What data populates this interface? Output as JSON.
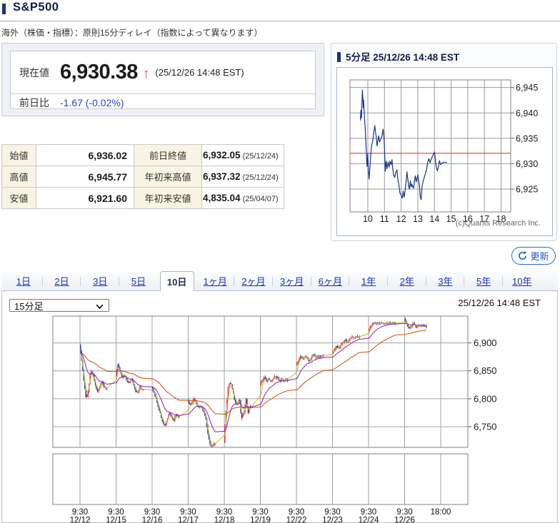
{
  "page": {
    "title": "S&P500",
    "subtitle": "海外（株価・指標）：原則15分ディレイ（指数によって異なります）"
  },
  "quote": {
    "current_label": "現在値",
    "current_value": "6,930.38",
    "arrow": "↑",
    "timestamp": "(25/12/26 14:48 EST)",
    "change_label": "前日比",
    "change_value": "-1.67 (-0.02%)"
  },
  "stats_table": {
    "rows": [
      {
        "label1": "始値",
        "value1": "6,936.02",
        "label2": "前日終値",
        "value2": "6,932.05",
        "date2": "(25/12/24)"
      },
      {
        "label1": "高値",
        "value1": "6,945.77",
        "label2": "年初来高値",
        "value2": "6,937.32",
        "date2": "(25/12/24)"
      },
      {
        "label1": "安値",
        "value1": "6,921.60",
        "label2": "年初来安値",
        "value2": "4,835.04",
        "date2": "(25/04/07)"
      }
    ]
  },
  "intraday_panel": {
    "title": "5分足 25/12/26 14:48 EST",
    "copyright": "(c)Quants Research Inc."
  },
  "refresh_button": {
    "label": "更新"
  },
  "tabs": {
    "selected": "10日",
    "items": [
      {
        "label": "1日",
        "selected": false
      },
      {
        "label": "2日",
        "selected": false
      },
      {
        "label": "3日",
        "selected": false
      },
      {
        "label": "5日",
        "selected": false
      },
      {
        "label": "10日",
        "selected": true
      },
      {
        "label": "1ヶ月",
        "selected": false
      },
      {
        "label": "2ヶ月",
        "selected": false
      },
      {
        "label": "3ヶ月",
        "selected": false
      },
      {
        "label": "6ヶ月",
        "selected": false
      },
      {
        "label": "1年",
        "selected": false
      },
      {
        "label": "2年",
        "selected": false
      },
      {
        "label": "3年",
        "selected": false
      },
      {
        "label": "5年",
        "selected": false
      },
      {
        "label": "10年",
        "selected": false
      }
    ]
  },
  "chart_controls": {
    "interval_select": "15分足",
    "datetime": "25/12/26 14:48 EST"
  },
  "colors": {
    "accent_navy": "#101c4e",
    "link_blue": "#1a35b0",
    "up_red": "#e0263e",
    "down_blue": "#2035a8",
    "ma_short": "#b9c21f",
    "ma_mid": "#9b1fb4",
    "ma_long": "#d2500f",
    "prev_close_red": "#e23b3b",
    "intraday_line": "#16368c",
    "arrow_pink": "#e8365f",
    "change_blue": "#2743c8"
  },
  "chart_data": [
    {
      "type": "line",
      "title": "5分足 intraday",
      "x_unit": "hour",
      "x_ticks": [
        10,
        11,
        12,
        13,
        14,
        15,
        16,
        17,
        18
      ],
      "x_range": [
        8.93,
        18.58
      ],
      "y_ticks": [
        6925,
        6930,
        6935,
        6940,
        6945
      ],
      "y_tick_labels": [
        "6,925",
        "6,930",
        "6,935",
        "6,940",
        "6,945"
      ],
      "y_range": [
        6920.5,
        6946.5
      ],
      "prev_close": 6932.05,
      "points": [
        [
          9.55,
          6938.5
        ],
        [
          9.58,
          6940.5
        ],
        [
          9.62,
          6939
        ],
        [
          9.67,
          6944.5
        ],
        [
          9.7,
          6943
        ],
        [
          9.73,
          6941
        ],
        [
          9.75,
          6942.5
        ],
        [
          9.8,
          6939
        ],
        [
          9.85,
          6936.5
        ],
        [
          9.9,
          6933
        ],
        [
          9.95,
          6929.5
        ],
        [
          10,
          6932
        ],
        [
          10.03,
          6929
        ],
        [
          10.08,
          6927
        ],
        [
          10.12,
          6929
        ],
        [
          10.17,
          6931.5
        ],
        [
          10.22,
          6933.5
        ],
        [
          10.3,
          6934.5
        ],
        [
          10.35,
          6936
        ],
        [
          10.42,
          6937.5
        ],
        [
          10.47,
          6936
        ],
        [
          10.5,
          6935.5
        ],
        [
          10.55,
          6933.5
        ],
        [
          10.6,
          6934.5
        ],
        [
          10.65,
          6935.5
        ],
        [
          10.7,
          6934.3
        ],
        [
          10.78,
          6934.8
        ],
        [
          10.85,
          6935.5
        ],
        [
          10.92,
          6936.8
        ],
        [
          10.97,
          6935
        ],
        [
          11,
          6933
        ],
        [
          11.05,
          6928.5
        ],
        [
          11.1,
          6930.5
        ],
        [
          11.15,
          6929
        ],
        [
          11.22,
          6930.3
        ],
        [
          11.28,
          6929.3
        ],
        [
          11.33,
          6930.5
        ],
        [
          11.4,
          6929.8
        ],
        [
          11.45,
          6930.8
        ],
        [
          11.5,
          6929
        ],
        [
          11.55,
          6927.8
        ],
        [
          11.62,
          6927.3
        ],
        [
          11.68,
          6928.3
        ],
        [
          11.75,
          6928.8
        ],
        [
          11.8,
          6927
        ],
        [
          11.87,
          6925.8
        ],
        [
          11.93,
          6924.2
        ],
        [
          12,
          6923.8
        ],
        [
          12.07,
          6923.2
        ],
        [
          12.12,
          6924.6
        ],
        [
          12.18,
          6923.4
        ],
        [
          12.25,
          6925
        ],
        [
          12.3,
          6926.6
        ],
        [
          12.35,
          6928.4
        ],
        [
          12.4,
          6927
        ],
        [
          12.45,
          6925.6
        ],
        [
          12.5,
          6925
        ],
        [
          12.55,
          6926.6
        ],
        [
          12.6,
          6925.4
        ],
        [
          12.65,
          6926
        ],
        [
          12.7,
          6925.4
        ],
        [
          12.75,
          6925.2
        ],
        [
          12.8,
          6926.6
        ],
        [
          12.85,
          6927.6
        ],
        [
          12.9,
          6926.4
        ],
        [
          12.95,
          6927
        ],
        [
          13,
          6927.8
        ],
        [
          13.05,
          6926.6
        ],
        [
          13.1,
          6925.8
        ],
        [
          13.15,
          6923.4
        ],
        [
          13.2,
          6922.9
        ],
        [
          13.25,
          6925.4
        ],
        [
          13.32,
          6926.6
        ],
        [
          13.4,
          6927.4
        ],
        [
          13.47,
          6928.2
        ],
        [
          13.53,
          6929
        ],
        [
          13.6,
          6930.4
        ],
        [
          13.67,
          6931
        ],
        [
          13.73,
          6930.2
        ],
        [
          13.8,
          6930.8
        ],
        [
          13.87,
          6931.4
        ],
        [
          13.93,
          6931.8
        ],
        [
          14,
          6932.3
        ],
        [
          14.05,
          6931
        ],
        [
          14.1,
          6929.6
        ],
        [
          14.17,
          6928.6
        ],
        [
          14.23,
          6929.2
        ],
        [
          14.3,
          6930.6
        ],
        [
          14.37,
          6929.8
        ],
        [
          14.43,
          6930
        ],
        [
          14.5,
          6930.2
        ],
        [
          14.6,
          6930.3
        ],
        [
          14.75,
          6930.2
        ]
      ]
    },
    {
      "type": "candlestick",
      "interval": "15分足",
      "period": "10日",
      "y_ticks": [
        6900,
        6850,
        6800,
        6750
      ],
      "y_tick_labels": [
        "6,900",
        "6,850",
        "6,800",
        "6,750"
      ],
      "y_range": [
        6713,
        6948
      ],
      "x_axis_last_label": "18:00",
      "moving_averages": [
        "short",
        "mid",
        "long"
      ],
      "days": [
        {
          "date": "12/12",
          "time": "9:30",
          "path": [
            6897,
            6868,
            6828,
            6800,
            6815,
            6850,
            6845,
            6828,
            6812,
            6820,
            6832,
            6822,
            6818
          ]
        },
        {
          "date": "12/15",
          "time": "9:30",
          "path": [
            6840,
            6863,
            6848,
            6838,
            6843,
            6833,
            6827,
            6836,
            6828,
            6814,
            6810,
            6822,
            6817
          ]
        },
        {
          "date": "12/16",
          "time": "9:30",
          "path": [
            6820,
            6812,
            6800,
            6786,
            6772,
            6757,
            6752,
            6764,
            6776,
            6768,
            6762,
            6772,
            6768
          ]
        },
        {
          "date": "12/17",
          "time": "9:30",
          "path": [
            6799,
            6789,
            6794,
            6801,
            6791,
            6783,
            6787,
            6779,
            6768,
            6742,
            6718,
            6714,
            6720
          ]
        },
        {
          "date": "12/18",
          "time": "9:30",
          "path": [
            6722,
            6782,
            6824,
            6829,
            6817,
            6794,
            6788,
            6802,
            6764,
            6774,
            6800,
            6776,
            6786
          ]
        },
        {
          "date": "12/19",
          "time": "9:30",
          "path": [
            6825,
            6833,
            6839,
            6830,
            6837,
            6829,
            6835,
            6841,
            6836,
            6831,
            6837,
            6832,
            6834
          ]
        },
        {
          "date": "12/22",
          "time": "9:30",
          "path": [
            6859,
            6869,
            6875,
            6871,
            6877,
            6872,
            6866,
            6875,
            6879,
            6873,
            6877,
            6874,
            6877
          ]
        },
        {
          "date": "12/23",
          "time": "9:30",
          "path": [
            6881,
            6889,
            6894,
            6890,
            6897,
            6901,
            6905,
            6901,
            6907,
            6911,
            6908,
            6912,
            6910
          ]
        },
        {
          "date": "12/24",
          "time": "9:30",
          "path": [
            6921,
            6929,
            6934,
            6936,
            6934,
            6935,
            6936,
            6934,
            6935,
            6936,
            6935,
            6936,
            6935
          ]
        },
        {
          "date": "12/26",
          "time": "9:30",
          "path": [
            6943,
            6934,
            6926,
            6929,
            6936,
            6928,
            6931,
            6929,
            6932,
            6930
          ]
        }
      ]
    }
  ]
}
